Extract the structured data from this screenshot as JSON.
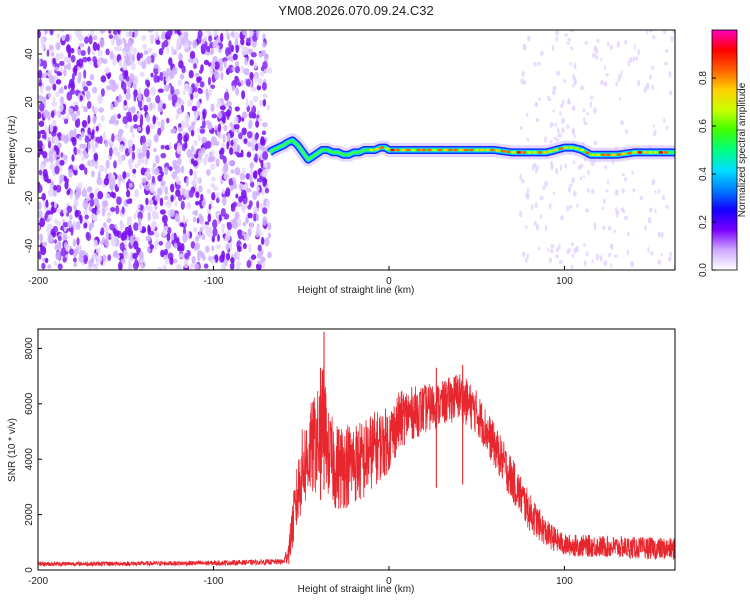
{
  "title": "YM08.2026.070.09.24.C32",
  "chart_data": [
    {
      "type": "heatmap",
      "title": "YM08.2026.070.09.24.C32",
      "xlabel": "Height of straight line (km)",
      "ylabel": "Frequency (Hz)",
      "xlim": [
        -200,
        163
      ],
      "ylim": [
        -50,
        50
      ],
      "xticks": [
        -200,
        -100,
        0,
        100
      ],
      "yticks": [
        -40,
        -20,
        0,
        20,
        40
      ],
      "colorbar": {
        "label": "Normalized spectral amplitude",
        "range": [
          0,
          1
        ],
        "ticks": [
          "0.0",
          "0.2",
          "0.4",
          "0.6",
          "0.8"
        ],
        "colors": [
          "#ffffff",
          "#cfa8ff",
          "#7a00ff",
          "#1200ff",
          "#0080ff",
          "#00e0ff",
          "#00ff80",
          "#40ff00",
          "#c8ff00",
          "#ffd000",
          "#ff6000",
          "#ff0000",
          "#ff00c0"
        ]
      },
      "noise_region_x": [
        -200,
        -68
      ],
      "signal_track": {
        "x": [
          -68,
          -66,
          -63,
          -60,
          -58,
          -55,
          -52,
          -50,
          -48,
          -46,
          -44,
          -42,
          -40,
          -38,
          -35,
          -32,
          -29,
          -26,
          -23,
          -20,
          -17,
          -14,
          -11,
          -8,
          -5,
          -2,
          0,
          10,
          20,
          30,
          40,
          50,
          60,
          70,
          80,
          85,
          88,
          90,
          95,
          100,
          105,
          110,
          115,
          120,
          130,
          140,
          150,
          160,
          163
        ],
        "y": [
          -1,
          0,
          1,
          2,
          3,
          4,
          2,
          0,
          -2,
          -4,
          -3,
          -2,
          -1,
          0,
          0,
          -1,
          -1,
          -2,
          -2,
          -1,
          -1,
          0,
          0,
          0,
          1,
          1,
          0,
          0,
          0,
          0,
          0,
          0,
          0,
          -1,
          -1,
          -1,
          -1,
          -1,
          0,
          1,
          1,
          0,
          -2,
          -2,
          -2,
          -1,
          -1,
          -1,
          -1
        ],
        "peak_amplitude": 0.9
      }
    },
    {
      "type": "line",
      "xlabel": "Height of straight line (km)",
      "ylabel": "SNR (10 * v/v)",
      "xlim": [
        -200,
        163
      ],
      "ylim": [
        0,
        8700
      ],
      "xticks": [
        -200,
        -100,
        0,
        100
      ],
      "yticks": [
        0,
        2000,
        4000,
        6000,
        8000
      ],
      "series": [
        {
          "name": "SNR",
          "color": "#e8262e",
          "envelope_x": [
            -200,
            -150,
            -100,
            -60,
            -57,
            -55,
            -50,
            -45,
            -40,
            -37,
            -35,
            -30,
            -25,
            -20,
            -15,
            -10,
            -5,
            0,
            5,
            10,
            20,
            30,
            40,
            50,
            60,
            70,
            80,
            90,
            100,
            120,
            140,
            163
          ],
          "envelope_mean": [
            220,
            230,
            250,
            300,
            700,
            1600,
            3500,
            4300,
            4700,
            5800,
            4200,
            3700,
            3800,
            3900,
            3900,
            4300,
            4500,
            4700,
            5300,
            5600,
            5800,
            6000,
            6300,
            5700,
            4500,
            3300,
            2100,
            1300,
            900,
            850,
            800,
            750
          ],
          "noise_amplitude": [
            80,
            80,
            90,
            100,
            500,
            900,
            1500,
            1700,
            1900,
            1800,
            1600,
            1600,
            1600,
            1500,
            1500,
            1400,
            1300,
            1200,
            1100,
            1000,
            900,
            800,
            900,
            800,
            800,
            800,
            700,
            500,
            400,
            400,
            400,
            400
          ],
          "spikes": [
            {
              "x": -37,
              "y": 8600
            },
            {
              "x": -39,
              "y": 7300
            },
            {
              "x": 42,
              "y": 7400
            },
            {
              "x": 27,
              "y": 7300
            }
          ]
        }
      ]
    }
  ]
}
